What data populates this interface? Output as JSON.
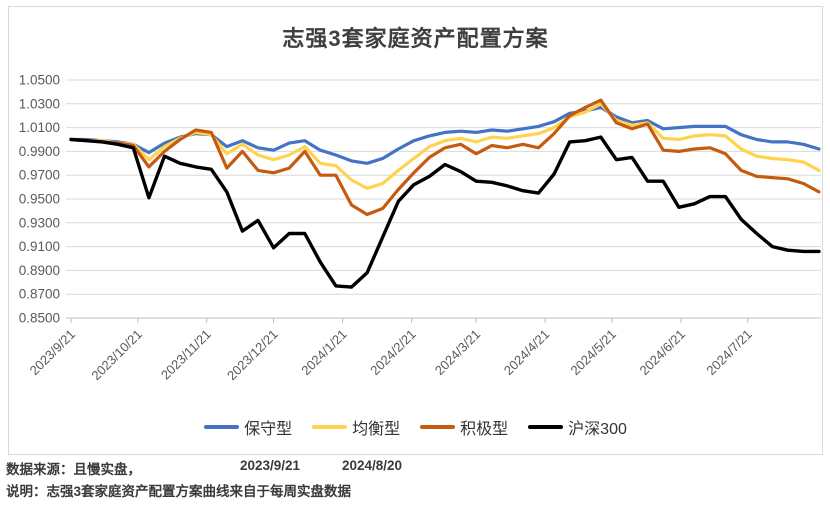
{
  "page": {
    "title": "志强3套家庭资产配置方案"
  },
  "footer": {
    "source_label": "数据来源：且慢实盘，",
    "start_date": "2023/9/21",
    "end_date": "2024/8/20",
    "note": "说明：志强3套家庭资产配置方案曲线来自于每周实盘数据"
  },
  "colors": {
    "grid": "#d9d9d9",
    "axis_line": "#bfbfbf",
    "axis_text": "#595959",
    "title_text": "#3f3f3f",
    "panel_border": "#d9d9d9",
    "series_blue": "#4472C4",
    "series_yellow": "#FFD34D",
    "series_orange": "#C55A11",
    "series_black": "#000000"
  },
  "chart_data": {
    "type": "line",
    "title": "志强3套家庭资产配置方案",
    "xlabel": "",
    "ylabel": "",
    "ylim": [
      0.85,
      1.05
    ],
    "ytick_step": 0.02,
    "grid": true,
    "legend_position": "bottom",
    "ytick_labels": [
      "1.0500",
      "1.0300",
      "1.0100",
      "0.9900",
      "0.9700",
      "0.9500",
      "0.9300",
      "0.9100",
      "0.8900",
      "0.8700",
      "0.8500"
    ],
    "xticks": [
      {
        "label": "2023/9/21",
        "week": 0
      },
      {
        "label": "2023/10/21",
        "week": 4.29
      },
      {
        "label": "2023/11/21",
        "week": 8.71
      },
      {
        "label": "2023/12/21",
        "week": 13
      },
      {
        "label": "2024/1/21",
        "week": 17.43
      },
      {
        "label": "2024/2/21",
        "week": 21.86
      },
      {
        "label": "2024/3/21",
        "week": 26
      },
      {
        "label": "2024/4/21",
        "week": 30.43
      },
      {
        "label": "2024/5/21",
        "week": 34.71
      },
      {
        "label": "2024/6/21",
        "week": 39.14
      },
      {
        "label": "2024/7/21",
        "week": 43.43
      }
    ],
    "x": [
      "2023/9/21",
      "2023/9/28",
      "2023/10/5",
      "2023/10/12",
      "2023/10/19",
      "2023/10/26",
      "2023/11/2",
      "2023/11/9",
      "2023/11/16",
      "2023/11/23",
      "2023/11/30",
      "2023/12/7",
      "2023/12/14",
      "2023/12/21",
      "2023/12/28",
      "2024/1/4",
      "2024/1/11",
      "2024/1/18",
      "2024/1/25",
      "2024/2/1",
      "2024/2/8",
      "2024/2/15",
      "2024/2/22",
      "2024/2/29",
      "2024/3/7",
      "2024/3/14",
      "2024/3/21",
      "2024/3/28",
      "2024/4/4",
      "2024/4/11",
      "2024/4/18",
      "2024/4/25",
      "2024/5/2",
      "2024/5/9",
      "2024/5/16",
      "2024/5/23",
      "2024/5/30",
      "2024/6/6",
      "2024/6/13",
      "2024/6/20",
      "2024/6/27",
      "2024/7/4",
      "2024/7/11",
      "2024/7/18",
      "2024/7/25",
      "2024/8/1",
      "2024/8/8",
      "2024/8/15",
      "2024/8/20"
    ],
    "series": [
      {
        "name": "保守型",
        "color": "#4472C4",
        "values": [
          1.0,
          1.0,
          0.999,
          0.998,
          0.996,
          0.989,
          0.997,
          1.002,
          1.005,
          1.004,
          0.994,
          0.999,
          0.993,
          0.991,
          0.997,
          0.999,
          0.991,
          0.987,
          0.982,
          0.98,
          0.984,
          0.992,
          0.999,
          1.003,
          1.006,
          1.007,
          1.006,
          1.008,
          1.007,
          1.009,
          1.011,
          1.015,
          1.022,
          1.024,
          1.027,
          1.019,
          1.014,
          1.016,
          1.009,
          1.01,
          1.011,
          1.011,
          1.011,
          1.004,
          1.0,
          0.998,
          0.998,
          0.996,
          0.992
        ]
      },
      {
        "name": "均衡型",
        "color": "#FFD34D",
        "values": [
          1.0,
          0.999,
          0.999,
          0.997,
          0.996,
          0.983,
          0.994,
          1.001,
          1.006,
          1.004,
          0.988,
          0.996,
          0.987,
          0.983,
          0.987,
          0.994,
          0.98,
          0.978,
          0.966,
          0.959,
          0.963,
          0.974,
          0.984,
          0.994,
          0.999,
          1.001,
          0.998,
          1.002,
          1.001,
          1.003,
          1.005,
          1.01,
          1.019,
          1.023,
          1.03,
          1.016,
          1.012,
          1.014,
          1.001,
          1.0,
          1.003,
          1.004,
          1.003,
          0.992,
          0.986,
          0.984,
          0.983,
          0.981,
          0.974
        ]
      },
      {
        "name": "积极型",
        "color": "#C55A11",
        "values": [
          1.0,
          0.999,
          0.998,
          0.997,
          0.995,
          0.977,
          0.99,
          1.0,
          1.008,
          1.006,
          0.976,
          0.99,
          0.974,
          0.972,
          0.976,
          0.99,
          0.97,
          0.97,
          0.945,
          0.937,
          0.942,
          0.958,
          0.972,
          0.985,
          0.993,
          0.996,
          0.988,
          0.995,
          0.993,
          0.996,
          0.993,
          1.005,
          1.02,
          1.027,
          1.033,
          1.014,
          1.009,
          1.013,
          0.991,
          0.99,
          0.992,
          0.993,
          0.988,
          0.974,
          0.969,
          0.968,
          0.967,
          0.963,
          0.956
        ]
      },
      {
        "name": "沪深300",
        "color": "#000000",
        "values": [
          1.0,
          0.999,
          0.998,
          0.996,
          0.993,
          0.951,
          0.986,
          0.98,
          0.977,
          0.975,
          0.956,
          0.923,
          0.932,
          0.909,
          0.921,
          0.921,
          0.897,
          0.877,
          0.876,
          0.888,
          0.918,
          0.948,
          0.962,
          0.969,
          0.979,
          0.973,
          0.965,
          0.964,
          0.961,
          0.957,
          0.955,
          0.971,
          0.998,
          0.999,
          1.002,
          0.983,
          0.985,
          0.965,
          0.965,
          0.943,
          0.946,
          0.952,
          0.952,
          0.933,
          0.921,
          0.91,
          0.907,
          0.906,
          0.906
        ]
      }
    ]
  }
}
